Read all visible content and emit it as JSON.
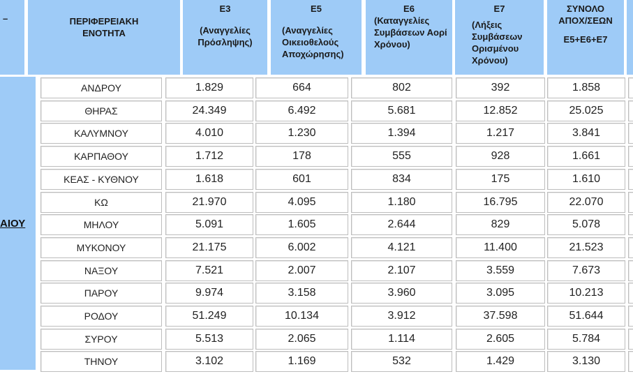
{
  "header": {
    "col0": "–",
    "region": "ΠΕΡΙΦΕΡΕΙΑΚΗ ΕΝΟΤΗΤΑ",
    "e3": {
      "code": "Ε3",
      "desc": "(Αναγγελίες Πρόσληψης)"
    },
    "e5": {
      "code": "Ε5",
      "desc": "(Αναγγελίες Οικειοθελούς Αποχώρησης)"
    },
    "e6": {
      "code": "Ε6",
      "desc": "(Καταγγελίες Συμβάσεων Αορί Χρόνου)"
    },
    "e7": {
      "code": "Ε7",
      "desc": "(Λήξεις Συμβάσεων Ορισμένου Χρόνου)"
    },
    "total": {
      "title": "ΣΥΝΟΛΟ ΑΠΟΧ/ΣΕΩΝ",
      "formula": "Ε5+Ε6+Ε7"
    }
  },
  "side_label": "ΑΙΟΥ",
  "rows": [
    [
      "ΑΝΔΡΟΥ",
      "1.829",
      "664",
      "802",
      "392",
      "1.858"
    ],
    [
      "ΘΗΡΑΣ",
      "24.349",
      "6.492",
      "5.681",
      "12.852",
      "25.025"
    ],
    [
      "ΚΑΛΥΜΝΟΥ",
      "4.010",
      "1.230",
      "1.394",
      "1.217",
      "3.841"
    ],
    [
      "ΚΑΡΠΑΘΟΥ",
      "1.712",
      "178",
      "555",
      "928",
      "1.661"
    ],
    [
      "ΚΕΑΣ - ΚΥΘΝΟΥ",
      "1.618",
      "601",
      "834",
      "175",
      "1.610"
    ],
    [
      "ΚΩ",
      "21.970",
      "4.095",
      "1.180",
      "16.795",
      "22.070"
    ],
    [
      "ΜΗΛΟΥ",
      "5.091",
      "1.605",
      "2.644",
      "829",
      "5.078"
    ],
    [
      "ΜΥΚΟΝΟΥ",
      "21.175",
      "6.002",
      "4.121",
      "11.400",
      "21.523"
    ],
    [
      "ΝΑΞΟΥ",
      "7.521",
      "2.007",
      "2.107",
      "3.559",
      "7.673"
    ],
    [
      "ΠΑΡΟΥ",
      "9.974",
      "3.158",
      "3.960",
      "3.095",
      "10.213"
    ],
    [
      "ΡΟΔΟΥ",
      "51.249",
      "10.134",
      "3.912",
      "37.598",
      "51.644"
    ],
    [
      "ΣΥΡΟΥ",
      "5.513",
      "2.065",
      "1.114",
      "2.605",
      "5.784"
    ],
    [
      "ΤΗΝΟΥ",
      "3.102",
      "1.169",
      "532",
      "1.429",
      "3.130"
    ]
  ],
  "colors": {
    "header_bg": "#9ecbf7",
    "cell_border": "#bdbdbd"
  }
}
